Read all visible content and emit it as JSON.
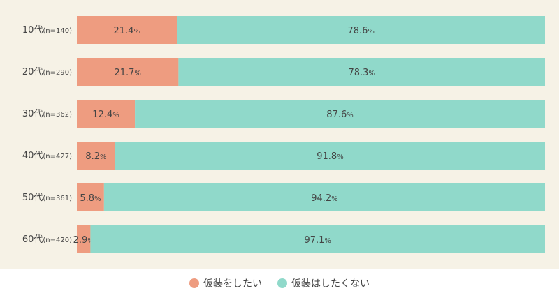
{
  "colors": {
    "yes": "#ee9c80",
    "no": "#90d9ca",
    "panel_bg": "#f6f2e6",
    "text": "#444444"
  },
  "legend": {
    "items": [
      {
        "label": "仮装をしたい",
        "color": "#ee9c80"
      },
      {
        "label": "仮装はしたくない",
        "color": "#90d9ca"
      }
    ]
  },
  "chart_data": {
    "type": "bar",
    "orientation": "horizontal",
    "stacked": true,
    "normalized_to_percent": true,
    "legend_position": "bottom",
    "grid": false,
    "categories": [
      {
        "main": "10代",
        "n": "(n=140)"
      },
      {
        "main": "20代",
        "n": "(n=290)"
      },
      {
        "main": "30代",
        "n": "(n=362)"
      },
      {
        "main": "40代",
        "n": "(n=427)"
      },
      {
        "main": "50代",
        "n": "(n=361)"
      },
      {
        "main": "60代",
        "n": "(n=420)"
      }
    ],
    "series": [
      {
        "name": "仮装をしたい",
        "values": [
          21.4,
          21.7,
          12.4,
          8.2,
          5.8,
          2.9
        ],
        "labels": [
          "21.4",
          "21.7",
          "12.4",
          "8.2",
          "5.8",
          "2.9"
        ]
      },
      {
        "name": "仮装はしたくない",
        "values": [
          78.6,
          78.3,
          87.6,
          91.8,
          94.2,
          97.1
        ],
        "labels": [
          "78.6",
          "78.3",
          "87.6",
          "91.8",
          "94.2",
          "97.1"
        ]
      }
    ],
    "unit": "%"
  }
}
